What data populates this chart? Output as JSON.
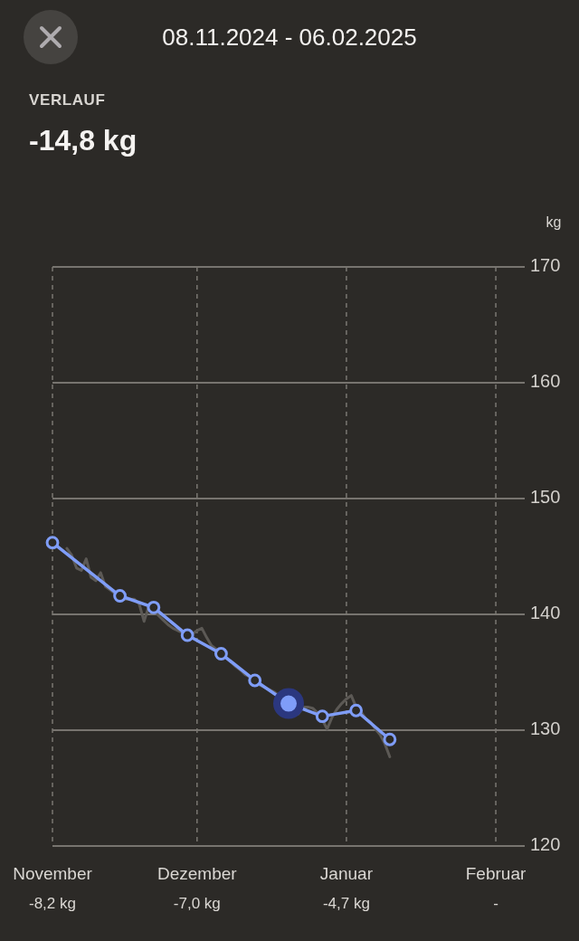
{
  "chart_data": {
    "type": "line",
    "title": "08.11.2024 - 06.02.2025",
    "subtitle": "VERLAUF",
    "ylabel": "kg",
    "annotations": [
      "-14,8 kg",
      "-8,2 kg",
      "-7,0 kg",
      "-4,7 kg",
      "-"
    ],
    "xlim": [
      "2024-11-01",
      "2025-02-07"
    ],
    "xticks": [
      {
        "value": "2024-11-01",
        "label": "November"
      },
      {
        "value": "2024-12-01",
        "label": "Dezember"
      },
      {
        "value": "2025-01-01",
        "label": "Januar"
      },
      {
        "value": "2025-02-01",
        "label": "Februar"
      }
    ],
    "ylim": [
      120,
      170
    ],
    "yticks": [
      120,
      130,
      140,
      150,
      160,
      170
    ],
    "grid": true,
    "marker": "circle",
    "series": [
      {
        "color": "#5c5955",
        "marker": "none",
        "x": [
          "2024-11-04",
          "2024-11-05",
          "2024-11-06",
          "2024-11-07",
          "2024-11-08",
          "2024-11-09",
          "2024-11-10",
          "2024-11-11",
          "2024-11-12",
          "2024-11-13",
          "2024-11-14",
          "2024-11-15",
          "2024-11-16",
          "2024-11-17",
          "2024-11-18",
          "2024-11-19",
          "2024-11-20",
          "2024-11-21",
          "2024-11-22",
          "2024-11-23",
          "2024-11-24",
          "2024-11-25",
          "2024-11-26",
          "2024-11-27",
          "2024-11-28",
          "2024-11-29",
          "2024-11-30",
          "2024-12-01",
          "2024-12-02",
          "2024-12-03",
          "2024-12-04",
          "2024-12-05",
          "2024-12-06",
          "2024-12-07",
          "2024-12-08",
          "2024-12-09",
          "2024-12-10",
          "2024-12-11",
          "2024-12-12",
          "2024-12-13",
          "2024-12-14",
          "2024-12-15",
          "2024-12-16",
          "2024-12-17",
          "2024-12-18",
          "2024-12-19",
          "2024-12-20",
          "2024-12-21",
          "2024-12-22",
          "2024-12-23",
          "2024-12-24",
          "2024-12-25",
          "2024-12-26",
          "2024-12-27",
          "2024-12-28",
          "2024-12-29",
          "2024-12-30",
          "2024-12-31",
          "2025-01-01",
          "2025-01-02",
          "2025-01-03",
          "2025-01-04",
          "2025-01-05",
          "2025-01-06",
          "2025-01-07",
          "2025-01-08",
          "2025-01-09",
          "2025-01-10"
        ],
        "values": [
          145.7,
          145.1,
          144.0,
          143.8,
          144.8,
          143.2,
          142.9,
          143.6,
          142.4,
          142.1,
          141.8,
          141.5,
          141.3,
          141.3,
          141.3,
          140.9,
          139.4,
          140.7,
          140.5,
          139.9,
          139.5,
          139.1,
          138.8,
          138.6,
          138.4,
          138.1,
          138.3,
          138.6,
          138.8,
          138.0,
          137.3,
          137.0,
          136.6,
          136.3,
          135.9,
          135.5,
          135.2,
          134.8,
          134.6,
          134.3,
          133.9,
          133.7,
          133.5,
          133.3,
          133.0,
          null,
          null,
          null,
          131.4,
          132.0,
          132.0,
          131.9,
          131.5,
          130.9,
          130.1,
          131.1,
          131.8,
          132.3,
          132.7,
          133.0,
          132.0,
          131.6,
          131.0,
          130.7,
          130.1,
          129.6,
          128.8,
          127.7
        ]
      },
      {
        "color": "#7f9df8",
        "x": [
          "2024-11-01",
          "2024-11-15",
          "2024-11-22",
          "2024-11-29",
          "2024-12-06",
          "2024-12-13",
          "2024-12-20",
          "2024-12-27",
          "2025-01-03",
          "2025-01-10"
        ],
        "values": [
          146.2,
          141.6,
          140.6,
          138.2,
          136.6,
          134.3,
          132.3,
          131.2,
          131.7,
          129.2
        ]
      },
      {
        "type": "scatter",
        "color": "#7f9df8",
        "x": [
          "2024-12-20"
        ],
        "values": [
          132.3
        ]
      }
    ]
  }
}
